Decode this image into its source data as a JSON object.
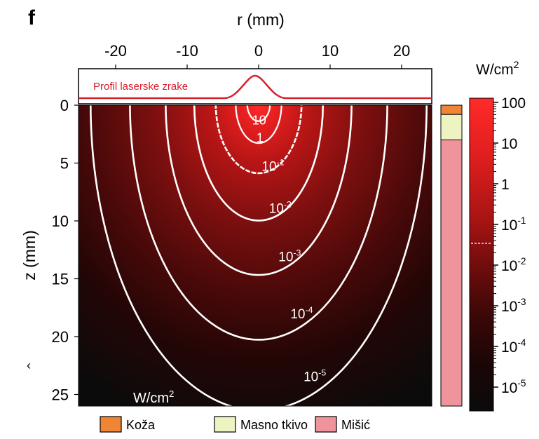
{
  "chart_data": {
    "type": "heatmap",
    "panel_label": "f",
    "title": "",
    "xlabel": "r (mm)",
    "ylabel": "z (mm)",
    "x_ticks": [
      "-20",
      "-10",
      "0",
      "10",
      "20"
    ],
    "x_tick_values": [
      -20,
      -10,
      0,
      10,
      20
    ],
    "y_ticks": [
      "0",
      "5",
      "10",
      "15",
      "20",
      "25"
    ],
    "y_tick_values": [
      0,
      5,
      10,
      15,
      20,
      25
    ],
    "xlim": [
      -25,
      25
    ],
    "ylim": [
      0,
      26
    ],
    "beam_profile_label": "Profil laserske zrake",
    "contours": [
      {
        "label_base": "10",
        "label_exp": "",
        "rx": 1.6,
        "depth": 1.5
      },
      {
        "label_base": "1",
        "label_exp": "",
        "rx": 3.2,
        "depth": 3.4
      },
      {
        "label_base": "10",
        "label_exp": "-1",
        "rx": 6.0,
        "depth": 6.0
      },
      {
        "label_base": "10",
        "label_exp": "-2",
        "rx": 9.0,
        "depth": 10.1
      },
      {
        "label_base": "10",
        "label_exp": "-3",
        "rx": 13.0,
        "depth": 14.8
      },
      {
        "label_base": "10",
        "label_exp": "-4",
        "rx": 18.0,
        "depth": 20.4
      },
      {
        "label_base": "10",
        "label_exp": "-5",
        "rx": 23.5,
        "depth": 26.5
      }
    ],
    "corner_unit": "W/cm",
    "corner_unit_exp": "2",
    "colorbar": {
      "unit": "W/cm",
      "unit_exp": "2",
      "scale": "log",
      "range": [
        1e-05,
        100
      ],
      "ticks": [
        {
          "base": "100",
          "exp": "",
          "value": 100
        },
        {
          "base": "10",
          "exp": "",
          "value": 10
        },
        {
          "base": "1",
          "exp": "",
          "value": 1
        },
        {
          "base": "10",
          "exp": "-1",
          "value": 0.1
        },
        {
          "base": "10",
          "exp": "-2",
          "value": 0.01
        },
        {
          "base": "10",
          "exp": "-3",
          "value": 0.001
        },
        {
          "base": "10",
          "exp": "-4",
          "value": 0.0001
        },
        {
          "base": "10",
          "exp": "-5",
          "value": 1e-05
        }
      ],
      "colors": [
        "#ff2a2a",
        "#d91c1c",
        "#a81212",
        "#6e0c0c",
        "#3e0707",
        "#1e0505",
        "#0b0b0b"
      ]
    },
    "layers": [
      {
        "name": "Koža",
        "color": "#ef8535",
        "z_range": [
          0,
          0.8
        ]
      },
      {
        "name": "Masno tkivo",
        "color": "#eef3c2",
        "z_range": [
          0.8,
          3.0
        ]
      },
      {
        "name": "Mišić",
        "color": "#ef949c",
        "z_range": [
          3.0,
          26
        ]
      }
    ],
    "legend": [
      {
        "name": "Koža",
        "color": "#ef8535"
      },
      {
        "name": "Masno tkivo",
        "color": "#eef3c2"
      },
      {
        "name": "Mišić",
        "color": "#ef949c"
      }
    ],
    "legend_placement": "bottom",
    "colors": {
      "beam_profile": "#d81e2a",
      "contour": "#ffffff"
    }
  }
}
